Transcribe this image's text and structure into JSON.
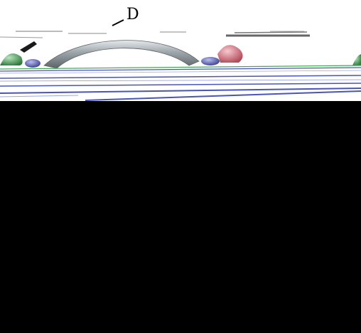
{
  "viewer": {
    "annotation_label": "D"
  },
  "colors": {
    "background_top": "#ffffff",
    "background_bottom": "#000000",
    "tube": "#9aa3a8",
    "sphere_green": "#3f9a4f",
    "sphere_red": "#d9707e",
    "sphere_blue": "#5a60b0",
    "line_blue": "#4a55b8",
    "line_green": "#3faa55"
  },
  "icons": {
    "label_pointer": "leader-line-icon"
  }
}
